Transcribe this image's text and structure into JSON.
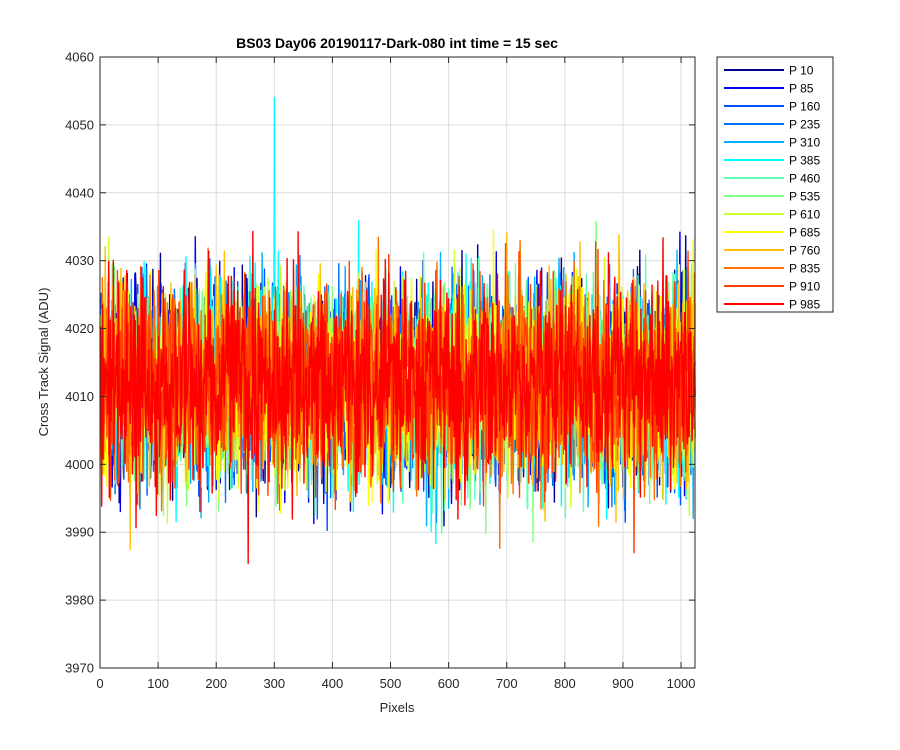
{
  "chart_data": {
    "type": "line",
    "title": "BS03 Day06 20190117-Dark-080 int time = 15 sec",
    "xlabel": "Pixels",
    "ylabel": "Cross Track Signal (ADU)",
    "xlim": [
      0,
      1024
    ],
    "ylim": [
      3970,
      4060
    ],
    "x_ticks": [
      0,
      100,
      200,
      300,
      400,
      500,
      600,
      700,
      800,
      900,
      1000
    ],
    "y_ticks": [
      3970,
      3980,
      3990,
      4000,
      4010,
      4020,
      4030,
      4040,
      4050,
      4060
    ],
    "grid": true,
    "legend_position": "outside-top-right",
    "noise": {
      "x_start": 1,
      "x_end": 1024,
      "mean": 4012,
      "sigma": 7
    },
    "series": [
      {
        "name": "P 10",
        "color": "#00008f",
        "seed": 11,
        "min": 3984,
        "max": 4045
      },
      {
        "name": "P 85",
        "color": "#0000ef",
        "seed": 23,
        "min": 3984,
        "max": 4046
      },
      {
        "name": "P 160",
        "color": "#004fff",
        "seed": 37,
        "min": 3985,
        "max": 4043
      },
      {
        "name": "P 235",
        "color": "#0070ff",
        "seed": 41,
        "min": 3981,
        "max": 4042
      },
      {
        "name": "P 310",
        "color": "#00afff",
        "seed": 53,
        "min": 3980,
        "max": 4041
      },
      {
        "name": "P 385",
        "color": "#00ffff",
        "seed": 67,
        "min": 3978,
        "max": 4054
      },
      {
        "name": "P 460",
        "color": "#5fffb4",
        "seed": 71,
        "min": 3983,
        "max": 4040
      },
      {
        "name": "P 535",
        "color": "#80ff80",
        "seed": 83,
        "min": 3985,
        "max": 4040
      },
      {
        "name": "P 610",
        "color": "#cfff30",
        "seed": 97,
        "min": 3983,
        "max": 4041
      },
      {
        "name": "P 685",
        "color": "#ffff00",
        "seed": 101,
        "min": 3986,
        "max": 4043
      },
      {
        "name": "P 760",
        "color": "#ffbf00",
        "seed": 113,
        "min": 3984,
        "max": 4044
      },
      {
        "name": "P 835",
        "color": "#ff7000",
        "seed": 127,
        "min": 3979,
        "max": 4044
      },
      {
        "name": "P 910",
        "color": "#ff4000",
        "seed": 131,
        "min": 3981,
        "max": 4040
      },
      {
        "name": "P 985",
        "color": "#ff0000",
        "seed": 139,
        "min": 3984,
        "max": 4040
      }
    ]
  }
}
